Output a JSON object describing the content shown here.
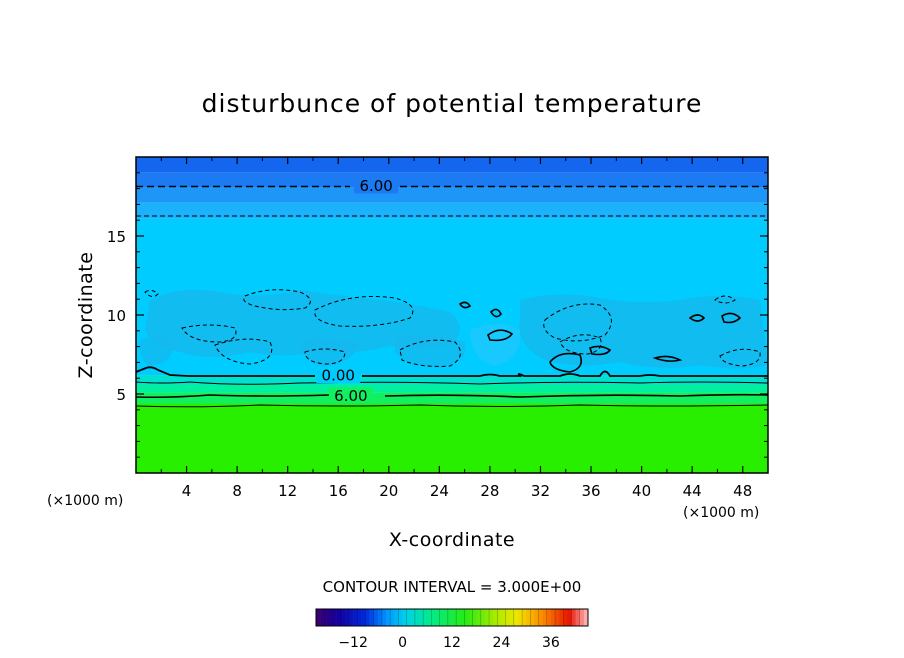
{
  "chart_data": {
    "type": "contour",
    "title": "disturbunce of potential temperature",
    "xlabel": "X-coordinate",
    "ylabel": "Z-coordinate",
    "x_unit": "(×1000 m)",
    "z_unit": "(×1000 m)",
    "xlim": [
      0,
      50
    ],
    "ylim": [
      0,
      20
    ],
    "x_ticks": [
      4,
      8,
      12,
      16,
      20,
      24,
      28,
      32,
      36,
      40,
      44,
      48
    ],
    "y_ticks": [
      5,
      10,
      15
    ],
    "contour_interval_label": "CONTOUR INTERVAL = 3.000E+00",
    "contour_interval": 3.0,
    "contour_labels": [
      {
        "text": "6.00",
        "value": 6.0,
        "z": 18.2,
        "x": 19,
        "style": "dashed"
      },
      {
        "text": "0.00",
        "value": 0.0,
        "z": 6.2,
        "x": 16,
        "style": "solid"
      },
      {
        "text": "6.00",
        "value": 6.0,
        "z": 4.9,
        "x": 17,
        "style": "solid"
      }
    ],
    "colorbar": {
      "ticks": [
        -12,
        0,
        12,
        24,
        36
      ],
      "tick_labels": [
        "−12",
        "0",
        "12",
        "24",
        "36"
      ],
      "range": [
        -21,
        45
      ]
    },
    "field_bands": [
      {
        "z0": 19.0,
        "z1": 20.0,
        "color": "#1466ee"
      },
      {
        "z0": 18.1,
        "z1": 19.0,
        "color": "#1c7af2"
      },
      {
        "z0": 17.1,
        "z1": 18.1,
        "color": "#1e96f8"
      },
      {
        "z0": 16.1,
        "z1": 17.1,
        "color": "#1bb2fb"
      },
      {
        "z0": 6.2,
        "z1": 16.1,
        "color": "#00ccff"
      },
      {
        "z0": 5.6,
        "z1": 6.2,
        "color": "#00e0d0"
      },
      {
        "z0": 5.1,
        "z1": 5.6,
        "color": "#00f0a0"
      },
      {
        "z0": 4.4,
        "z1": 5.1,
        "color": "#10f060"
      },
      {
        "z0": 0.0,
        "z1": 4.4,
        "color": "#28ee00"
      }
    ]
  }
}
